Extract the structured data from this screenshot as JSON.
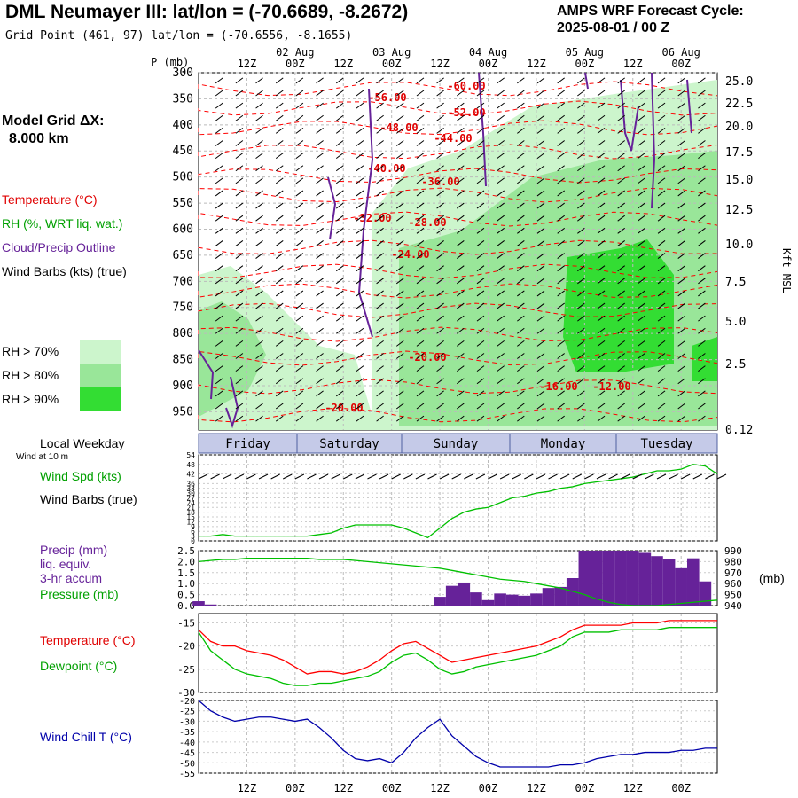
{
  "header": {
    "title": "DML Neumayer III:  lat/lon = (-70.6689, -8.2672)",
    "grid_point": "Grid Point (461, 97) lat/lon = (-70.6556, -8.1655)",
    "cycle_line1": "AMPS WRF Forecast Cycle:",
    "cycle_line2": "2025-08-01 / 00  Z"
  },
  "left_labels": {
    "model_grid": "Model Grid ΔX:",
    "model_grid_value": "8.000 km",
    "temperature": "Temperature (°C)",
    "rh": "RH (%, WRT liq. wat.)",
    "cloud": "Cloud/Precip Outline",
    "wind": "Wind Barbs (kts) (true)",
    "rh70": "RH > 70%",
    "rh80": "RH > 80%",
    "rh90": "RH > 90%",
    "p_axis": "P (mb)",
    "kft": "Kft MSL",
    "weekday": "Local Weekday",
    "wind10": "Wind at 10 m",
    "wspd": "Wind Spd (kts)",
    "wbarbs": "Wind Barbs (true)",
    "precip1": "Precip (mm)",
    "precip2": "liq. equiv.",
    "precip3": "3-hr accum",
    "pressure": "Pressure (mb)",
    "mb": "(mb)",
    "temp": "Temperature (°C)",
    "dew": "Dewpoint (°C)",
    "wchill": "Wind Chill T (°C)"
  },
  "colors": {
    "temp": "#ff0000",
    "dew": "#00c000",
    "rh70": "#ccf5cc",
    "rh80": "#99e699",
    "rh90": "#33dd33",
    "precip": "#662299",
    "wchill": "#0000aa",
    "cloud": "#662299",
    "weekday": "#5060a0"
  },
  "time_axis": {
    "hours": [
      "12Z",
      "00Z",
      "12Z",
      "00Z",
      "12Z",
      "00Z",
      "12Z",
      "00Z",
      "12Z",
      "00Z"
    ],
    "dates": [
      "02 Aug",
      "03 Aug",
      "04 Aug",
      "05 Aug",
      "06 Aug"
    ]
  },
  "weekdays": [
    "Friday",
    "Saturday",
    "Sunday",
    "Monday",
    "Tuesday"
  ],
  "chart_data": [
    {
      "type": "heatmap",
      "title": "Vertical cross-section",
      "ylabel": "P (mb)",
      "y_ticks": [
        "300",
        "350",
        "400",
        "450",
        "500",
        "550",
        "600",
        "650",
        "700",
        "750",
        "800",
        "850",
        "900",
        "950"
      ],
      "right_ticks": [
        "25.0",
        "22.5",
        "20.0",
        "17.5",
        "15.0",
        "12.5",
        "10.0",
        "7.5",
        "5.0",
        "2.5",
        "0.12"
      ],
      "temperature_labels": [
        "-60.00",
        "-56.00",
        "-52.00",
        "-48.00",
        "-44.00",
        "-40.00",
        "-36.00",
        "-32.00",
        "-28.00",
        "-24.00",
        "-20.00",
        "-20.00",
        "-16.00",
        "-12.00"
      ]
    },
    {
      "type": "line",
      "title": "Wind Spd (kts)",
      "y_ticks": [
        "54",
        "48",
        "42",
        "36",
        "33",
        "30",
        "27",
        "24",
        "21",
        "18",
        "15",
        "12",
        "9",
        "6",
        "3",
        "0"
      ],
      "x": [
        0,
        3,
        6,
        9,
        12,
        15,
        18,
        21,
        24,
        27,
        30,
        33,
        36,
        39,
        42,
        45,
        48,
        51,
        54,
        57,
        60,
        63,
        66,
        69,
        72,
        75,
        78,
        81,
        84,
        87,
        90,
        93,
        96,
        99,
        102,
        105,
        108,
        111,
        114,
        117,
        120,
        123,
        126,
        129
      ],
      "values": [
        3,
        3,
        4,
        3,
        3,
        3,
        3,
        3,
        3,
        3,
        4,
        5,
        8,
        10,
        10,
        10,
        10,
        8,
        5,
        2,
        8,
        14,
        18,
        20,
        21,
        24,
        27,
        28,
        30,
        31,
        33,
        34,
        36,
        37,
        38,
        39,
        40,
        42,
        44,
        44,
        45,
        48,
        47,
        42
      ]
    },
    {
      "type": "bar",
      "title": "Precip (mm)",
      "y_ticks": [
        "2.5",
        "2.0",
        "1.5",
        "1.0",
        "0.5",
        "0.0"
      ],
      "y2_ticks": [
        "990",
        "980",
        "970",
        "960",
        "950",
        "940"
      ],
      "x": [
        0,
        3,
        6,
        9,
        12,
        15,
        18,
        21,
        24,
        27,
        30,
        33,
        36,
        39,
        42,
        45,
        48,
        51,
        54,
        57,
        60,
        63,
        66,
        69,
        72,
        75,
        78,
        81,
        84,
        87,
        90,
        93,
        96,
        99,
        102,
        105,
        108,
        111,
        114,
        117,
        120,
        123,
        126,
        129
      ],
      "values": [
        0.2,
        0.05,
        0,
        0,
        0,
        0,
        0,
        0,
        0,
        0,
        0,
        0,
        0,
        0,
        0,
        0,
        0,
        0,
        0,
        0,
        0.4,
        0.9,
        1.05,
        0.6,
        0.25,
        0.55,
        0.5,
        0.45,
        0.55,
        0.8,
        0.85,
        1.25,
        2.5,
        2.5,
        2.5,
        2.5,
        2.5,
        2.4,
        2.25,
        2.1,
        1.7,
        2.15,
        1.1,
        0
      ],
      "pressure": [
        980,
        981,
        982,
        982,
        983,
        983,
        983,
        983,
        983,
        983,
        982,
        982,
        982,
        981,
        980,
        979,
        978,
        977,
        976,
        975,
        974,
        972,
        970,
        968,
        966,
        964,
        963,
        962,
        960,
        958,
        956,
        953,
        950,
        946,
        943,
        941,
        940,
        940,
        940,
        941,
        942,
        943,
        944,
        945
      ]
    },
    {
      "type": "line",
      "title": "Temperature / Dewpoint",
      "y_ticks": [
        "-15",
        "-20",
        "-25",
        "-30"
      ],
      "x": [
        0,
        3,
        6,
        9,
        12,
        15,
        18,
        21,
        24,
        27,
        30,
        33,
        36,
        39,
        42,
        45,
        48,
        51,
        54,
        57,
        60,
        63,
        66,
        69,
        72,
        75,
        78,
        81,
        84,
        87,
        90,
        93,
        96,
        99,
        102,
        105,
        108,
        111,
        114,
        117,
        120,
        123,
        126,
        129
      ],
      "series": [
        {
          "name": "Temperature",
          "values": [
            -16.5,
            -19,
            -20,
            -20,
            -21,
            -21.5,
            -22,
            -23,
            -24.5,
            -26,
            -25.5,
            -25.5,
            -26,
            -25.5,
            -24.5,
            -23,
            -21,
            -19.5,
            -19,
            -20.5,
            -22,
            -23.5,
            -23,
            -22.5,
            -22,
            -21.5,
            -21,
            -20.5,
            -20,
            -19,
            -18,
            -16.5,
            -15.5,
            -15.5,
            -15.5,
            -15.5,
            -15,
            -15,
            -15,
            -14.5,
            -14.5,
            -14.5,
            -14.5,
            -14.5
          ]
        },
        {
          "name": "Dewpoint",
          "values": [
            -17,
            -21,
            -23,
            -25,
            -26,
            -26.5,
            -27,
            -28,
            -28.5,
            -28.5,
            -28,
            -28,
            -27.5,
            -27,
            -26.5,
            -25.5,
            -23.5,
            -22,
            -21.5,
            -23,
            -25,
            -26,
            -25.5,
            -24.5,
            -24,
            -23.5,
            -23,
            -22.5,
            -22,
            -21,
            -20,
            -18,
            -17,
            -17,
            -17,
            -16.5,
            -16.5,
            -16.5,
            -16.5,
            -16,
            -16,
            -16,
            -16,
            -16
          ]
        }
      ]
    },
    {
      "type": "line",
      "title": "Wind Chill T (°C)",
      "y_ticks": [
        "-20",
        "-25",
        "-30",
        "-35",
        "-40",
        "-45",
        "-50",
        "-55"
      ],
      "x": [
        0,
        3,
        6,
        9,
        12,
        15,
        18,
        21,
        24,
        27,
        30,
        33,
        36,
        39,
        42,
        45,
        48,
        51,
        54,
        57,
        60,
        63,
        66,
        69,
        72,
        75,
        78,
        81,
        84,
        87,
        90,
        93,
        96,
        99,
        102,
        105,
        108,
        111,
        114,
        117,
        120,
        123,
        126,
        129
      ],
      "values": [
        -20,
        -25,
        -28,
        -30,
        -29,
        -28,
        -28,
        -29,
        -30,
        -29,
        -33,
        -38,
        -44,
        -48,
        -49,
        -48,
        -50,
        -45,
        -38,
        -33,
        -29,
        -37,
        -42,
        -47,
        -50,
        -52,
        -52,
        -52,
        -52,
        -52,
        -51,
        -51,
        -50,
        -48,
        -47,
        -46,
        -46,
        -45,
        -45,
        -45,
        -44,
        -44,
        -43,
        -43
      ]
    }
  ]
}
